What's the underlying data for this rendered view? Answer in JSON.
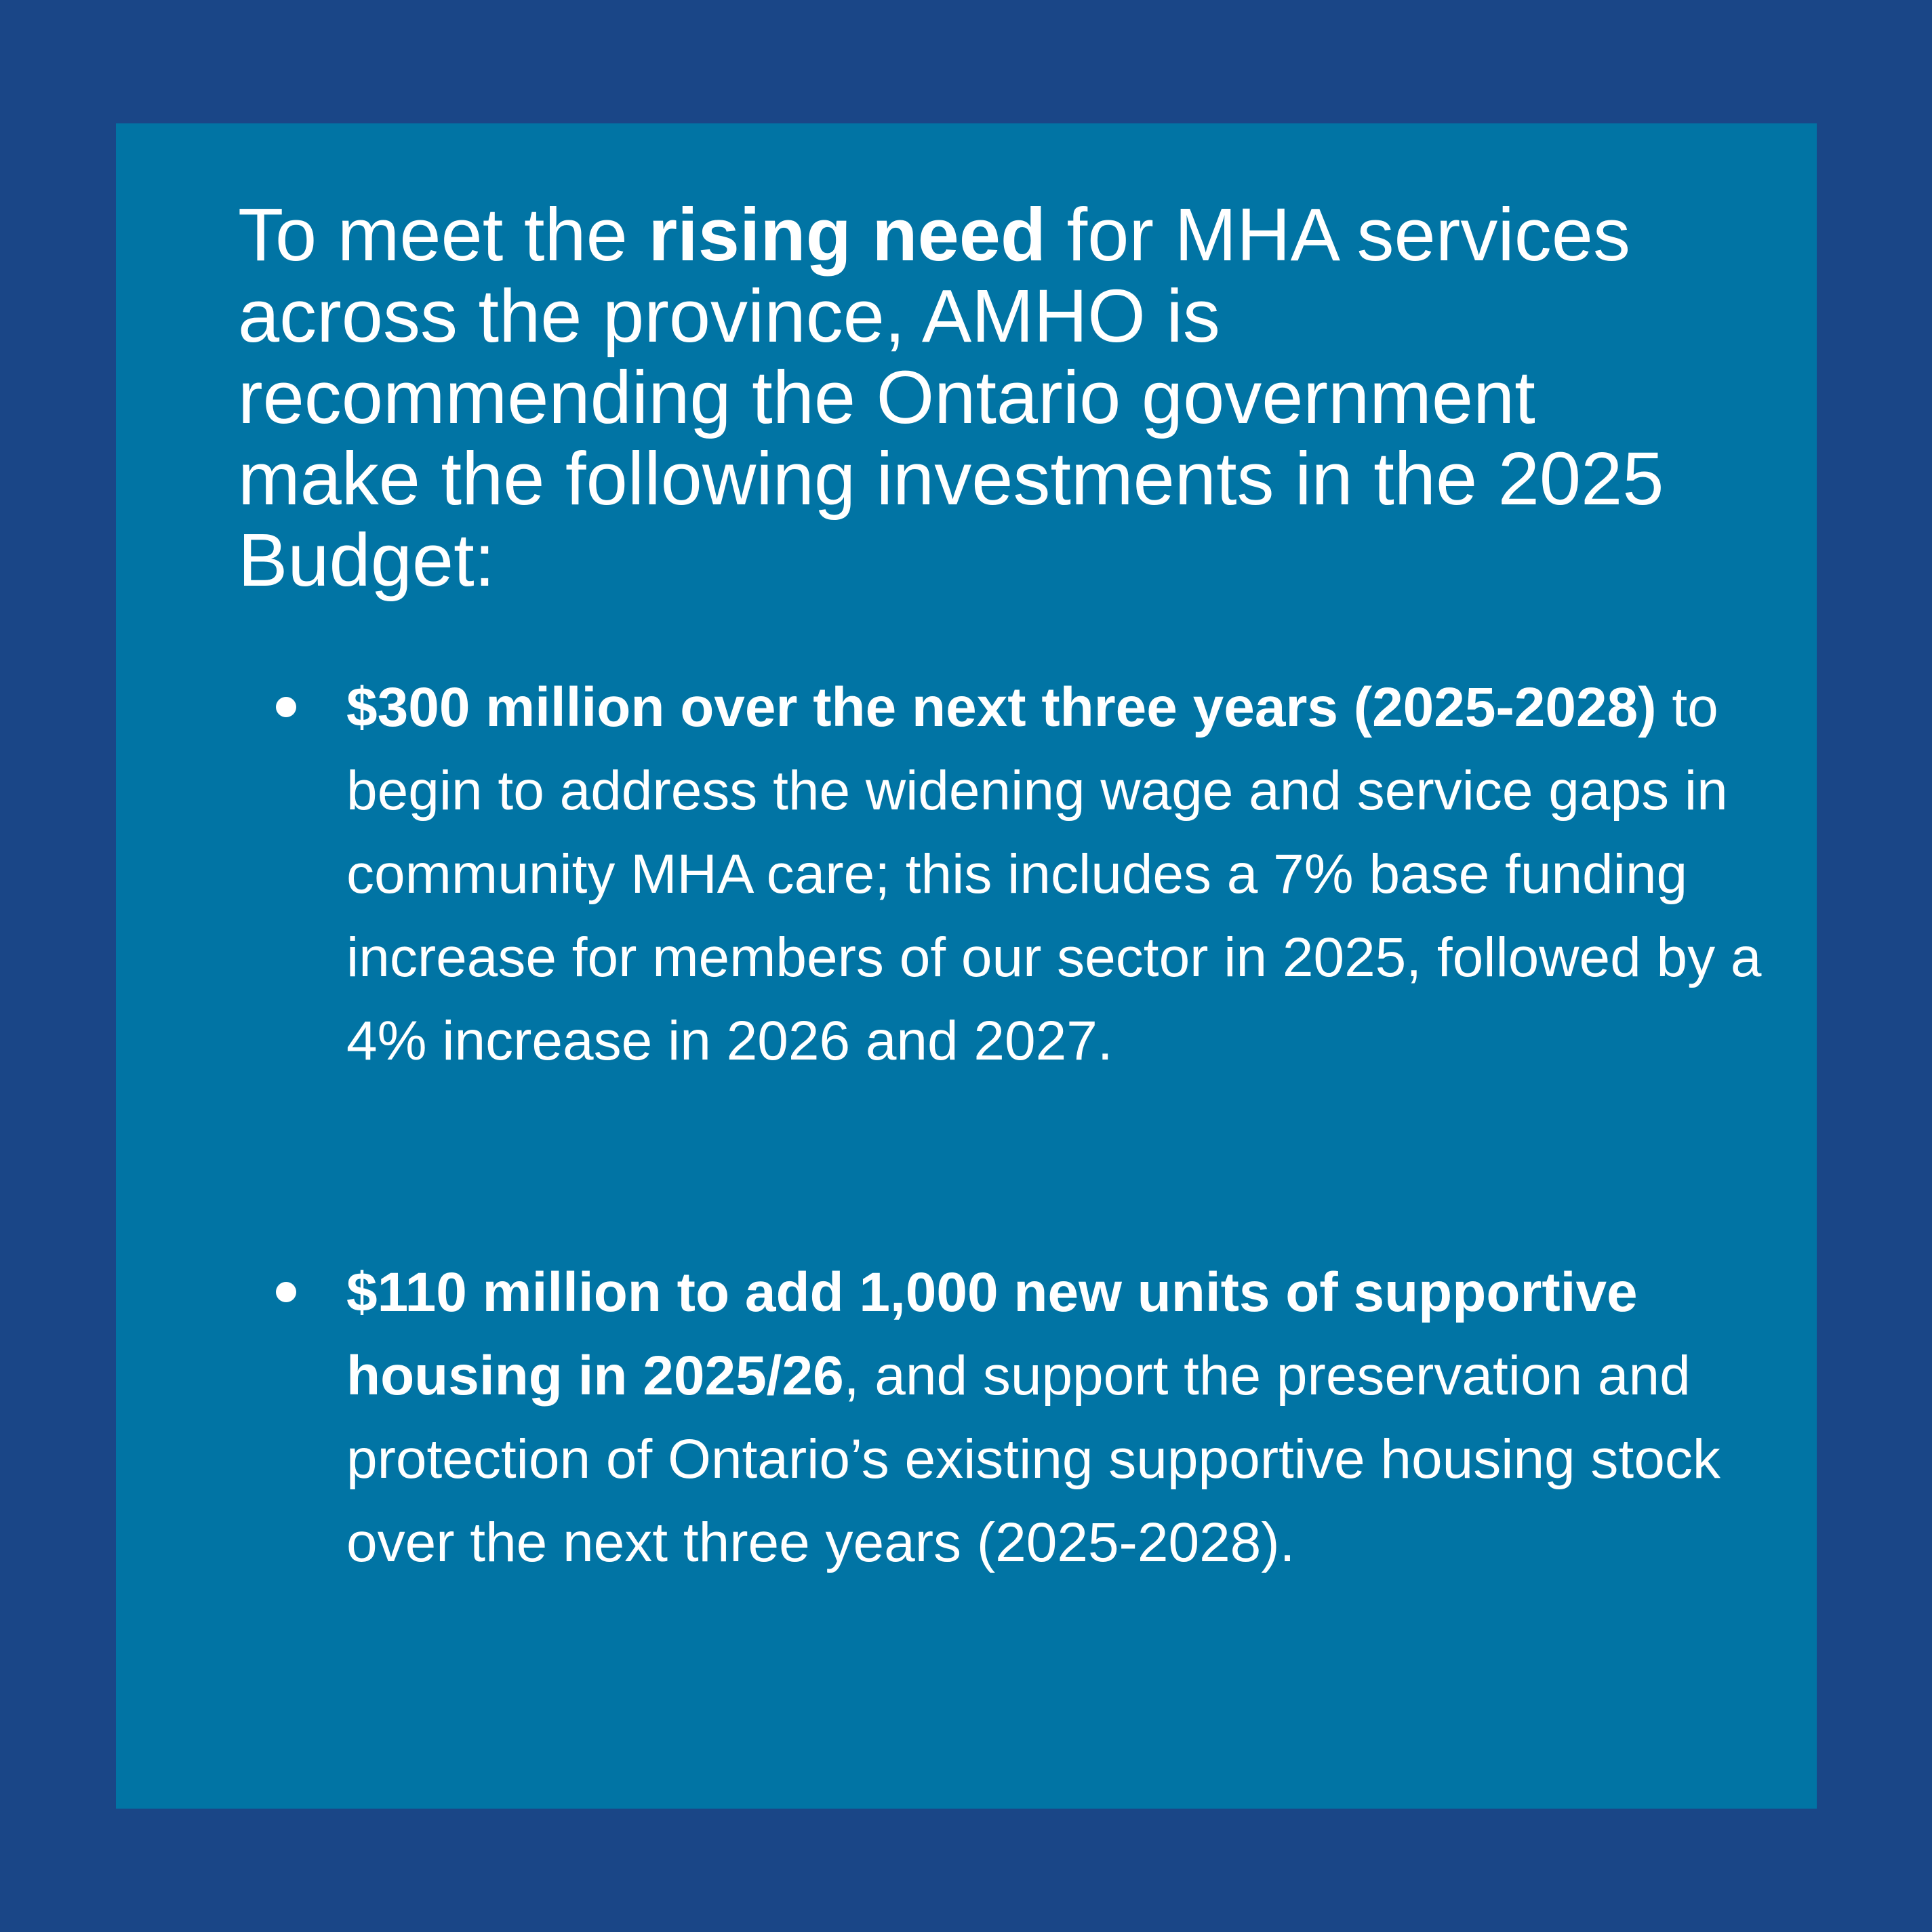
{
  "colors": {
    "background": "#1a4687",
    "panel": "#0174a4",
    "text": "#ffffff"
  },
  "intro": {
    "before": "To meet the ",
    "bold": "rising need",
    "after": " for MHA services across the province, AMHO is recommending the Ontario government make the following investments in the 2025 Budget:"
  },
  "recommendations": [
    {
      "bold": "$300 million over the next three years (2025-2028)",
      "text": " to begin to address the widening wage and service gaps in community MHA care; this includes a 7% base funding increase for members of our sector in 2025, followed by a 4% increase in 2026 and 2027."
    },
    {
      "bold": "$110 million to add 1,000 new units of supportive housing in 2025/26",
      "text": ", and support the preservation and protection of Ontario’s existing supportive housing stock over the next three years (2025-2028)."
    }
  ]
}
